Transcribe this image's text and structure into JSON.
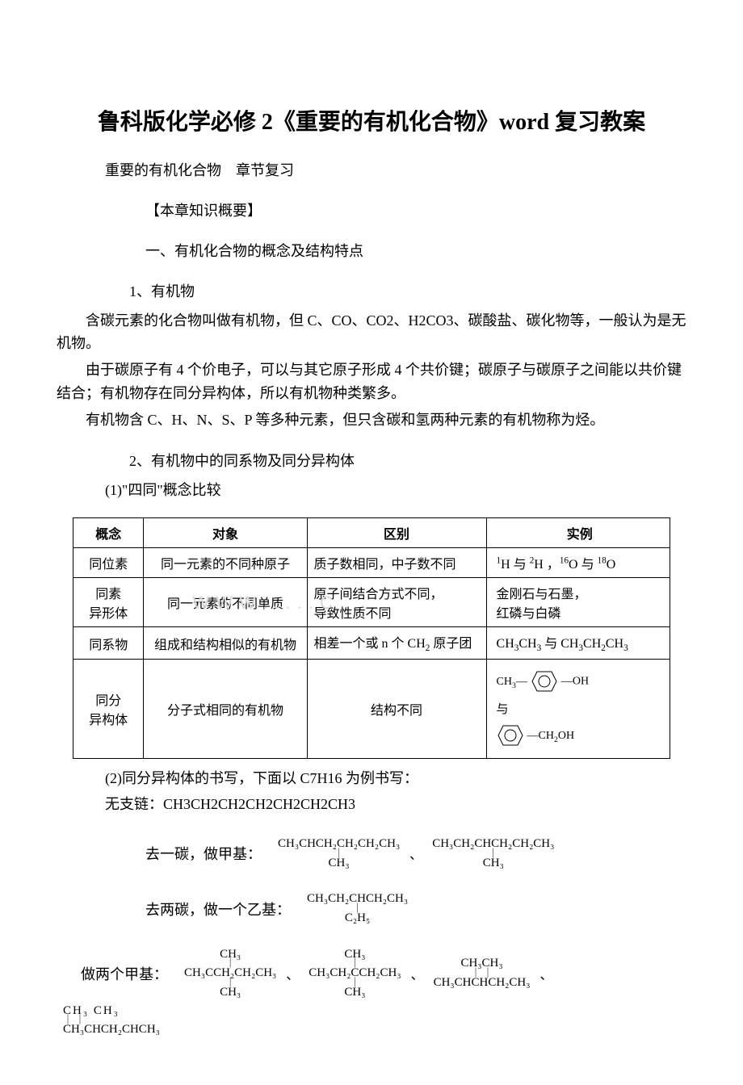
{
  "title": "鲁科版化学必修 2《重要的有机化合物》word 复习教案",
  "line1": "重要的有机化合物　章节复习",
  "line2": "【本章知识概要】",
  "line3": "一、有机化合物的概念及结构特点",
  "line4": "1、有机物",
  "p1": "含碳元素的化合物叫做有机物，但 C、CO、CO2、H2CO3、碳酸盐、碳化物等，一般认为是无机物。",
  "p2": "由于碳原子有 4 个价电子，可以与其它原子形成 4 个共价键；碳原子与碳原子之间能以共价键结合；有机物存在同分异构体，所以有机物种类繁多。",
  "p3": "有机物含 C、H、N、S、P 等多种元素，但只含碳和氢两种元素的有机物称为烃。",
  "line5": "2、有机物中的同系物及同分异构体",
  "line6": "(1)\"四同\"概念比较",
  "table": {
    "headers": [
      "概念",
      "对象",
      "区别",
      "实例"
    ],
    "rows": [
      {
        "c1": "同位素",
        "c2": "同一元素的不同种原子",
        "c3": "质子数相同，中子数不同",
        "c4_html": "<span class='sup'>1</span>H 与 <span class='sup'>2</span>H ，<span class='sup'>16</span>O 与 <span class='sup'>18</span>O"
      },
      {
        "c1": "同素<br>异形体",
        "c2": "同一元素的不同单质",
        "c3": "原子间结合方式不同，<br>导致性质不同",
        "c4_html": "金刚石与石墨，<br>红磷与白磷"
      },
      {
        "c1": "同系物",
        "c2": "组成和结构相似的有机物",
        "c3_html": "相差一个或 n 个 CH<span class='sub'>2</span> 原子团",
        "c4_html": "CH<span class='sub'>3</span>CH<span class='sub'>3</span> 与 CH<span class='sub'>3</span>CH<span class='sub'>2</span>CH<span class='sub'>3</span>"
      },
      {
        "c1": "同分<br>异构体",
        "c2": "分子式相同的有机物",
        "c3": "结构不同",
        "c4_special": true
      }
    ]
  },
  "line7": "(2)同分异构体的书写，下面以 C7H16 为例书写：",
  "line8": "无支链：CH3CH2CH2CH2CH2CH2CH3",
  "branch1_label": "去一碳，做甲基：",
  "branch1": {
    "a_top": "CH₃CHCH₂CH₂CH₂CH₃",
    "a_bot": "CH₃",
    "b_top": "CH₃CH₂CHCH₂CH₂CH₃",
    "b_bot": "CH₃"
  },
  "branch2_label": "去两碳，做一个乙基：",
  "branch2": {
    "a_top": "CH₃CH₂CHCH₂CH₃",
    "a_bot": "C₂H₅"
  },
  "branch3_label": "做两个甲基：",
  "branch3": {
    "a_top": "CH₃",
    "a_mid": "CH₃CCH₂CH₂CH₃",
    "a_bot": "CH₃",
    "b_top": "CH₃",
    "b_mid": "CH₃CH₂CCH₂CH₃",
    "b_bot": "CH₃",
    "c_top": "CH₃CH₃",
    "c_bot": "CH₃CHCHCH₂CH₃",
    "d_top": "CH₃    CH₃",
    "d_bot": "CH₃CHCH₂CHCH₃"
  },
  "watermark_text": "W W W . . . . . C"
}
